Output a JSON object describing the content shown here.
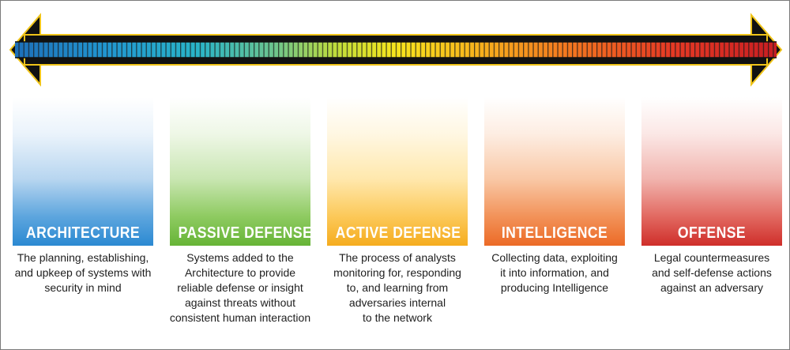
{
  "scale": {
    "left_arrow_icon": "arrow-left-icon",
    "right_arrow_icon": "arrow-right-icon",
    "gradient_colors": [
      "#1d6fb8",
      "#22a6c7",
      "#4cc0a2",
      "#9fd548",
      "#f7e51d",
      "#f8b11c",
      "#f3711f",
      "#e63424",
      "#c81e22"
    ]
  },
  "categories": [
    {
      "label": "ARCHITECTURE",
      "description": "The planning, establishing,\nand upkeep of systems with\nsecurity in mind",
      "color": "#2b89d2"
    },
    {
      "label": "PASSIVE DEFENSE",
      "description": "Systems added to the\nArchitecture to provide\nreliable defense or insight\nagainst threats without\nconsistent human interaction",
      "color": "#66b436"
    },
    {
      "label": "ACTIVE DEFENSE",
      "description": "The process of analysts\nmonitoring for, responding\nto, and learning from\nadversaries internal\nto the network",
      "color": "#f5ac1e"
    },
    {
      "label": "INTELLIGENCE",
      "description": "Collecting data, exploiting\nit into information, and\nproducing Intelligence",
      "color": "#ec6a26"
    },
    {
      "label": "OFFENSE",
      "description": "Legal countermeasures\nand self-defense actions\nagainst an adversary",
      "color": "#cf2e2a"
    }
  ]
}
